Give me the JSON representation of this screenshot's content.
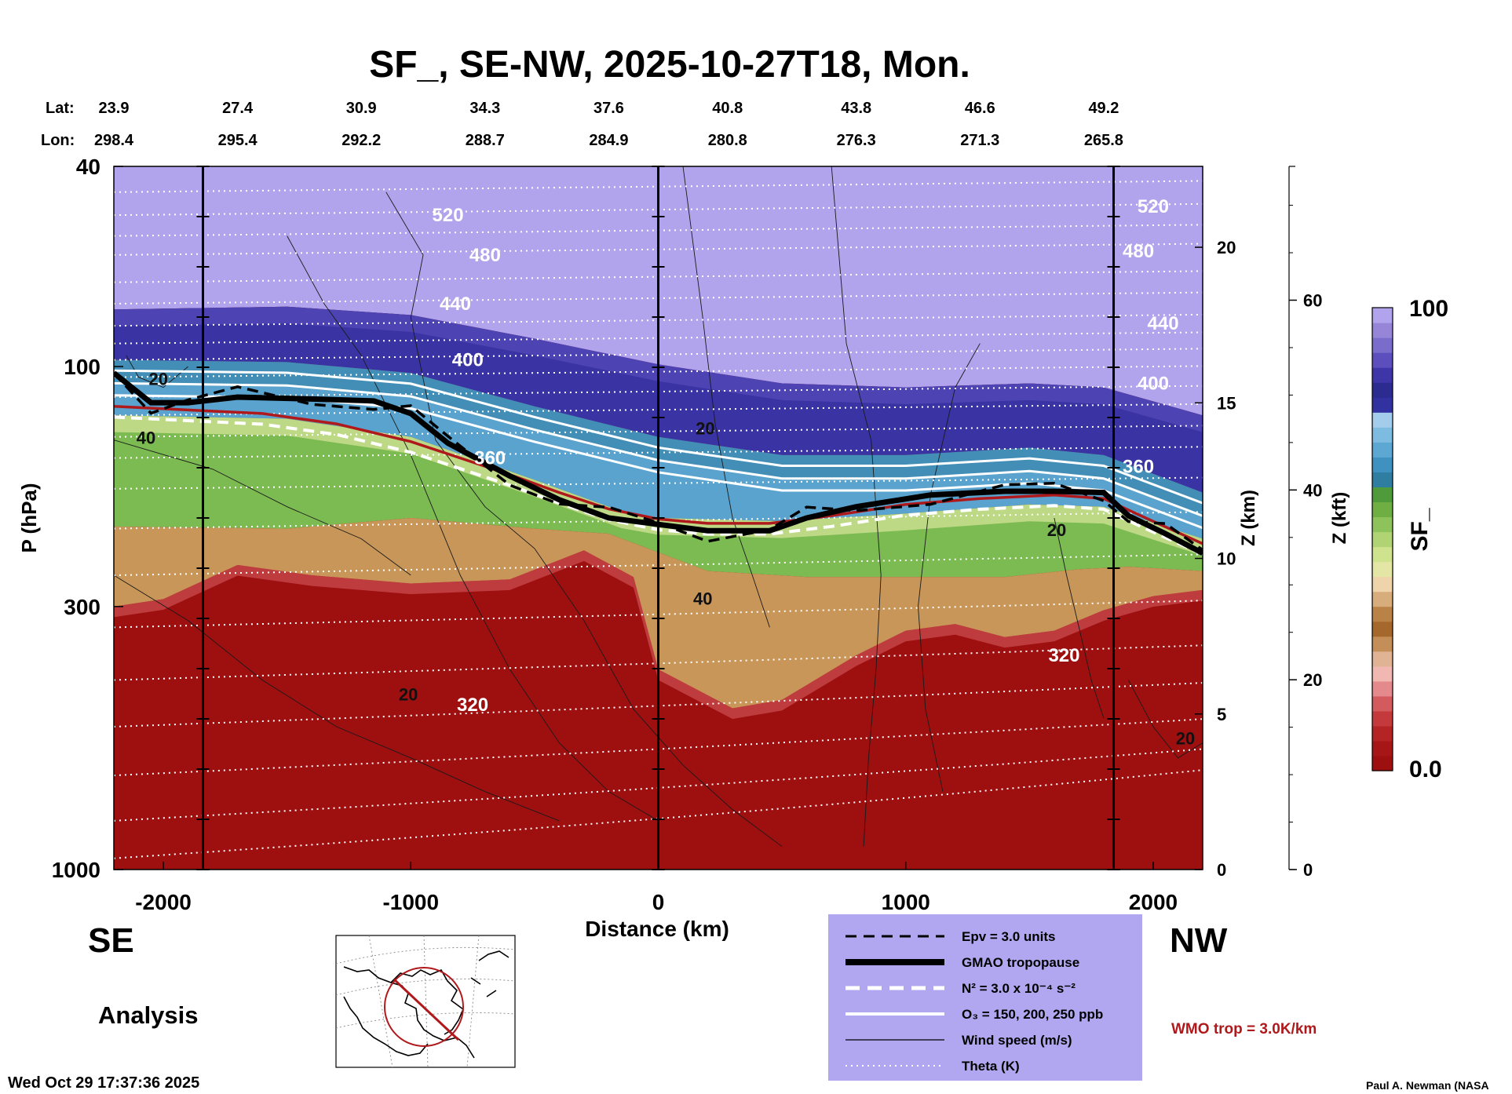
{
  "chart_data": {
    "type": "heatmap",
    "title": "SF_, SE-NW, 2025-10-27T18, Mon.",
    "xlabel": "Distance (km)",
    "ylabel": "P (hPa)",
    "z_km_label": "Z (km)",
    "z_kft_label": "Z (kft)",
    "colorbar_label": "SF_",
    "xlim": [
      -2200,
      2200
    ],
    "x_ticks": [
      "-2000",
      "-1000",
      "0",
      "1000",
      "2000"
    ],
    "x_tick_values": [
      -2000,
      -1000,
      0,
      1000,
      2000
    ],
    "ylim_hpa": [
      1000,
      40
    ],
    "y_ticks": [
      "40",
      "100",
      "300",
      "1000"
    ],
    "y_tick_values": [
      40,
      100,
      300,
      1000
    ],
    "z_km_ticks": [
      "0",
      "5",
      "10",
      "15",
      "20"
    ],
    "z_km_values": [
      0,
      5,
      10,
      15,
      20
    ],
    "z_kft_ticks": [
      "0",
      "20",
      "40",
      "60"
    ],
    "z_kft_values": [
      0,
      20,
      40,
      60
    ],
    "colorbar_range": [
      "0.0",
      "100"
    ],
    "lat_label": "Lat:",
    "lon_label": "Lon:",
    "lat": [
      "23.9",
      "27.4",
      "30.9",
      "34.3",
      "37.6",
      "40.8",
      "43.8",
      "46.6",
      "49.2"
    ],
    "lon": [
      "298.4",
      "295.4",
      "292.2",
      "288.7",
      "284.9",
      "280.8",
      "276.3",
      "271.3",
      "265.8"
    ],
    "coord_distance_km": [
      -2200,
      -1700,
      -1200,
      -700,
      -200,
      280,
      800,
      1300,
      1800
    ],
    "vertical_markers_km": [
      -1840,
      0,
      1840
    ],
    "theta_labels": [
      {
        "text": "520",
        "x": -850,
        "p": 50
      },
      {
        "text": "480",
        "x": -700,
        "p": 60
      },
      {
        "text": "440",
        "x": -820,
        "p": 75
      },
      {
        "text": "400",
        "x": -770,
        "p": 97
      },
      {
        "text": "360",
        "x": -680,
        "p": 152
      },
      {
        "text": "320",
        "x": -750,
        "p": 470
      },
      {
        "text": "520",
        "x": 2000,
        "p": 48
      },
      {
        "text": "480",
        "x": 1940,
        "p": 59
      },
      {
        "text": "440",
        "x": 2040,
        "p": 82
      },
      {
        "text": "400",
        "x": 2000,
        "p": 108
      },
      {
        "text": "360",
        "x": 1940,
        "p": 158
      },
      {
        "text": "320",
        "x": 1640,
        "p": 375
      }
    ],
    "wind_labels": [
      {
        "text": "20",
        "x": -2020,
        "p": 106
      },
      {
        "text": "40",
        "x": -2070,
        "p": 139
      },
      {
        "text": "20",
        "x": 190,
        "p": 133
      },
      {
        "text": "40",
        "x": 180,
        "p": 290
      },
      {
        "text": "20",
        "x": -1010,
        "p": 450
      },
      {
        "text": "20",
        "x": 1610,
        "p": 212
      },
      {
        "text": "20",
        "x": 2130,
        "p": 550
      }
    ],
    "legend": [
      {
        "label": "Epv = 3.0 units",
        "style": "dashed-black"
      },
      {
        "label": "GMAO tropopause",
        "style": "thick-black"
      },
      {
        "label": "N² = 3.0 x 10⁻⁴ s⁻²",
        "style": "dashed-white"
      },
      {
        "label": "O₃ = 150, 200, 250 ppb",
        "style": "solid-white"
      },
      {
        "label": "Wind speed (m/s)",
        "style": "thin-black"
      },
      {
        "label": "Theta (K)",
        "style": "dotted-white"
      }
    ],
    "series_tropopause_p": [
      [
        -2200,
        103
      ],
      [
        -2050,
        118
      ],
      [
        -1900,
        118
      ],
      [
        -1700,
        115
      ],
      [
        -1400,
        116
      ],
      [
        -1150,
        117
      ],
      [
        -1000,
        124
      ],
      [
        -850,
        142
      ],
      [
        -600,
        165
      ],
      [
        -400,
        184
      ],
      [
        -200,
        200
      ],
      [
        0,
        206
      ],
      [
        200,
        212
      ],
      [
        450,
        212
      ],
      [
        600,
        200
      ],
      [
        800,
        190
      ],
      [
        1100,
        180
      ],
      [
        1400,
        177
      ],
      [
        1600,
        177
      ],
      [
        1800,
        178
      ],
      [
        1900,
        198
      ],
      [
        2050,
        215
      ],
      [
        2200,
        235
      ]
    ],
    "series_redline_p": [
      [
        -2200,
        120
      ],
      [
        -1900,
        122
      ],
      [
        -1600,
        124
      ],
      [
        -1300,
        130
      ],
      [
        -1000,
        141
      ],
      [
        -800,
        152
      ],
      [
        -600,
        164
      ],
      [
        -400,
        178
      ],
      [
        -200,
        192
      ],
      [
        0,
        201
      ],
      [
        200,
        205
      ],
      [
        450,
        205
      ],
      [
        700,
        198
      ],
      [
        1000,
        188
      ],
      [
        1300,
        183
      ],
      [
        1600,
        180
      ],
      [
        1800,
        183
      ],
      [
        1950,
        198
      ],
      [
        2200,
        225
      ]
    ],
    "boundaries_p": {
      "purple_top": [
        [
          -2200,
          77
        ],
        [
          -1500,
          76
        ],
        [
          -1000,
          79
        ],
        [
          -500,
          88
        ],
        [
          0,
          99
        ],
        [
          500,
          108
        ],
        [
          1000,
          110
        ],
        [
          1500,
          108
        ],
        [
          1800,
          110
        ],
        [
          2200,
          125
        ]
      ],
      "blue_top": [
        [
          -2200,
          97
        ],
        [
          -1500,
          98
        ],
        [
          -1000,
          103
        ],
        [
          -500,
          120
        ],
        [
          0,
          138
        ],
        [
          500,
          150
        ],
        [
          1000,
          150
        ],
        [
          1500,
          145
        ],
        [
          1800,
          150
        ],
        [
          2200,
          178
        ]
      ],
      "green_top": [
        [
          -2200,
          125
        ],
        [
          -1500,
          127
        ],
        [
          -1000,
          138
        ],
        [
          -500,
          168
        ],
        [
          -150,
          194
        ],
        [
          0,
          200
        ],
        [
          500,
          203
        ],
        [
          1000,
          196
        ],
        [
          1500,
          188
        ],
        [
          1800,
          190
        ],
        [
          2200,
          220
        ]
      ],
      "tan_top": [
        [
          -2200,
          208
        ],
        [
          -1500,
          210
        ],
        [
          -1000,
          200
        ],
        [
          -500,
          210
        ],
        [
          -200,
          215
        ],
        [
          200,
          255
        ],
        [
          600,
          262
        ],
        [
          1000,
          262
        ],
        [
          1400,
          262
        ],
        [
          1700,
          253
        ],
        [
          1900,
          250
        ],
        [
          2200,
          255
        ]
      ],
      "red_top": [
        [
          -2200,
          300
        ],
        [
          -2000,
          290
        ],
        [
          -1700,
          248
        ],
        [
          -1400,
          260
        ],
        [
          -1000,
          270
        ],
        [
          -600,
          265
        ],
        [
          -300,
          232
        ],
        [
          -100,
          262
        ],
        [
          0,
          400
        ],
        [
          300,
          478
        ],
        [
          500,
          460
        ],
        [
          800,
          375
        ],
        [
          1000,
          335
        ],
        [
          1200,
          325
        ],
        [
          1400,
          345
        ],
        [
          1600,
          335
        ],
        [
          1800,
          305
        ],
        [
          2000,
          286
        ],
        [
          2200,
          278
        ]
      ]
    },
    "colorbar_colors": [
      "#9e0f10",
      "#a61616",
      "#b42424",
      "#c43a3c",
      "#d35a5d",
      "#e58a8c",
      "#f0b8b0",
      "#dfb394",
      "#c48e58",
      "#a5682c",
      "#b98247",
      "#d7ad7c",
      "#efd3aa",
      "#e3e6a4",
      "#cfe28d",
      "#b0d474",
      "#8ec25a",
      "#6fae43",
      "#4f9b3b",
      "#2f7ea2",
      "#3f91c0",
      "#5da7d3",
      "#7ebbe0",
      "#a3cdea",
      "#3231a0",
      "#2c2b8f",
      "#3e35a8",
      "#5c4ebd",
      "#7a6cca",
      "#9786d8",
      "#b2a4ec"
    ],
    "grid": false,
    "legend_placement": "bottom-center"
  },
  "labels": {
    "se": "SE",
    "nw": "NW",
    "analysis": "Analysis",
    "timestamp": "Wed Oct 29 17:37:36 2025",
    "wmo": "WMO trop = 3.0K/km",
    "credit": "Paul A. Newman (NASA"
  }
}
